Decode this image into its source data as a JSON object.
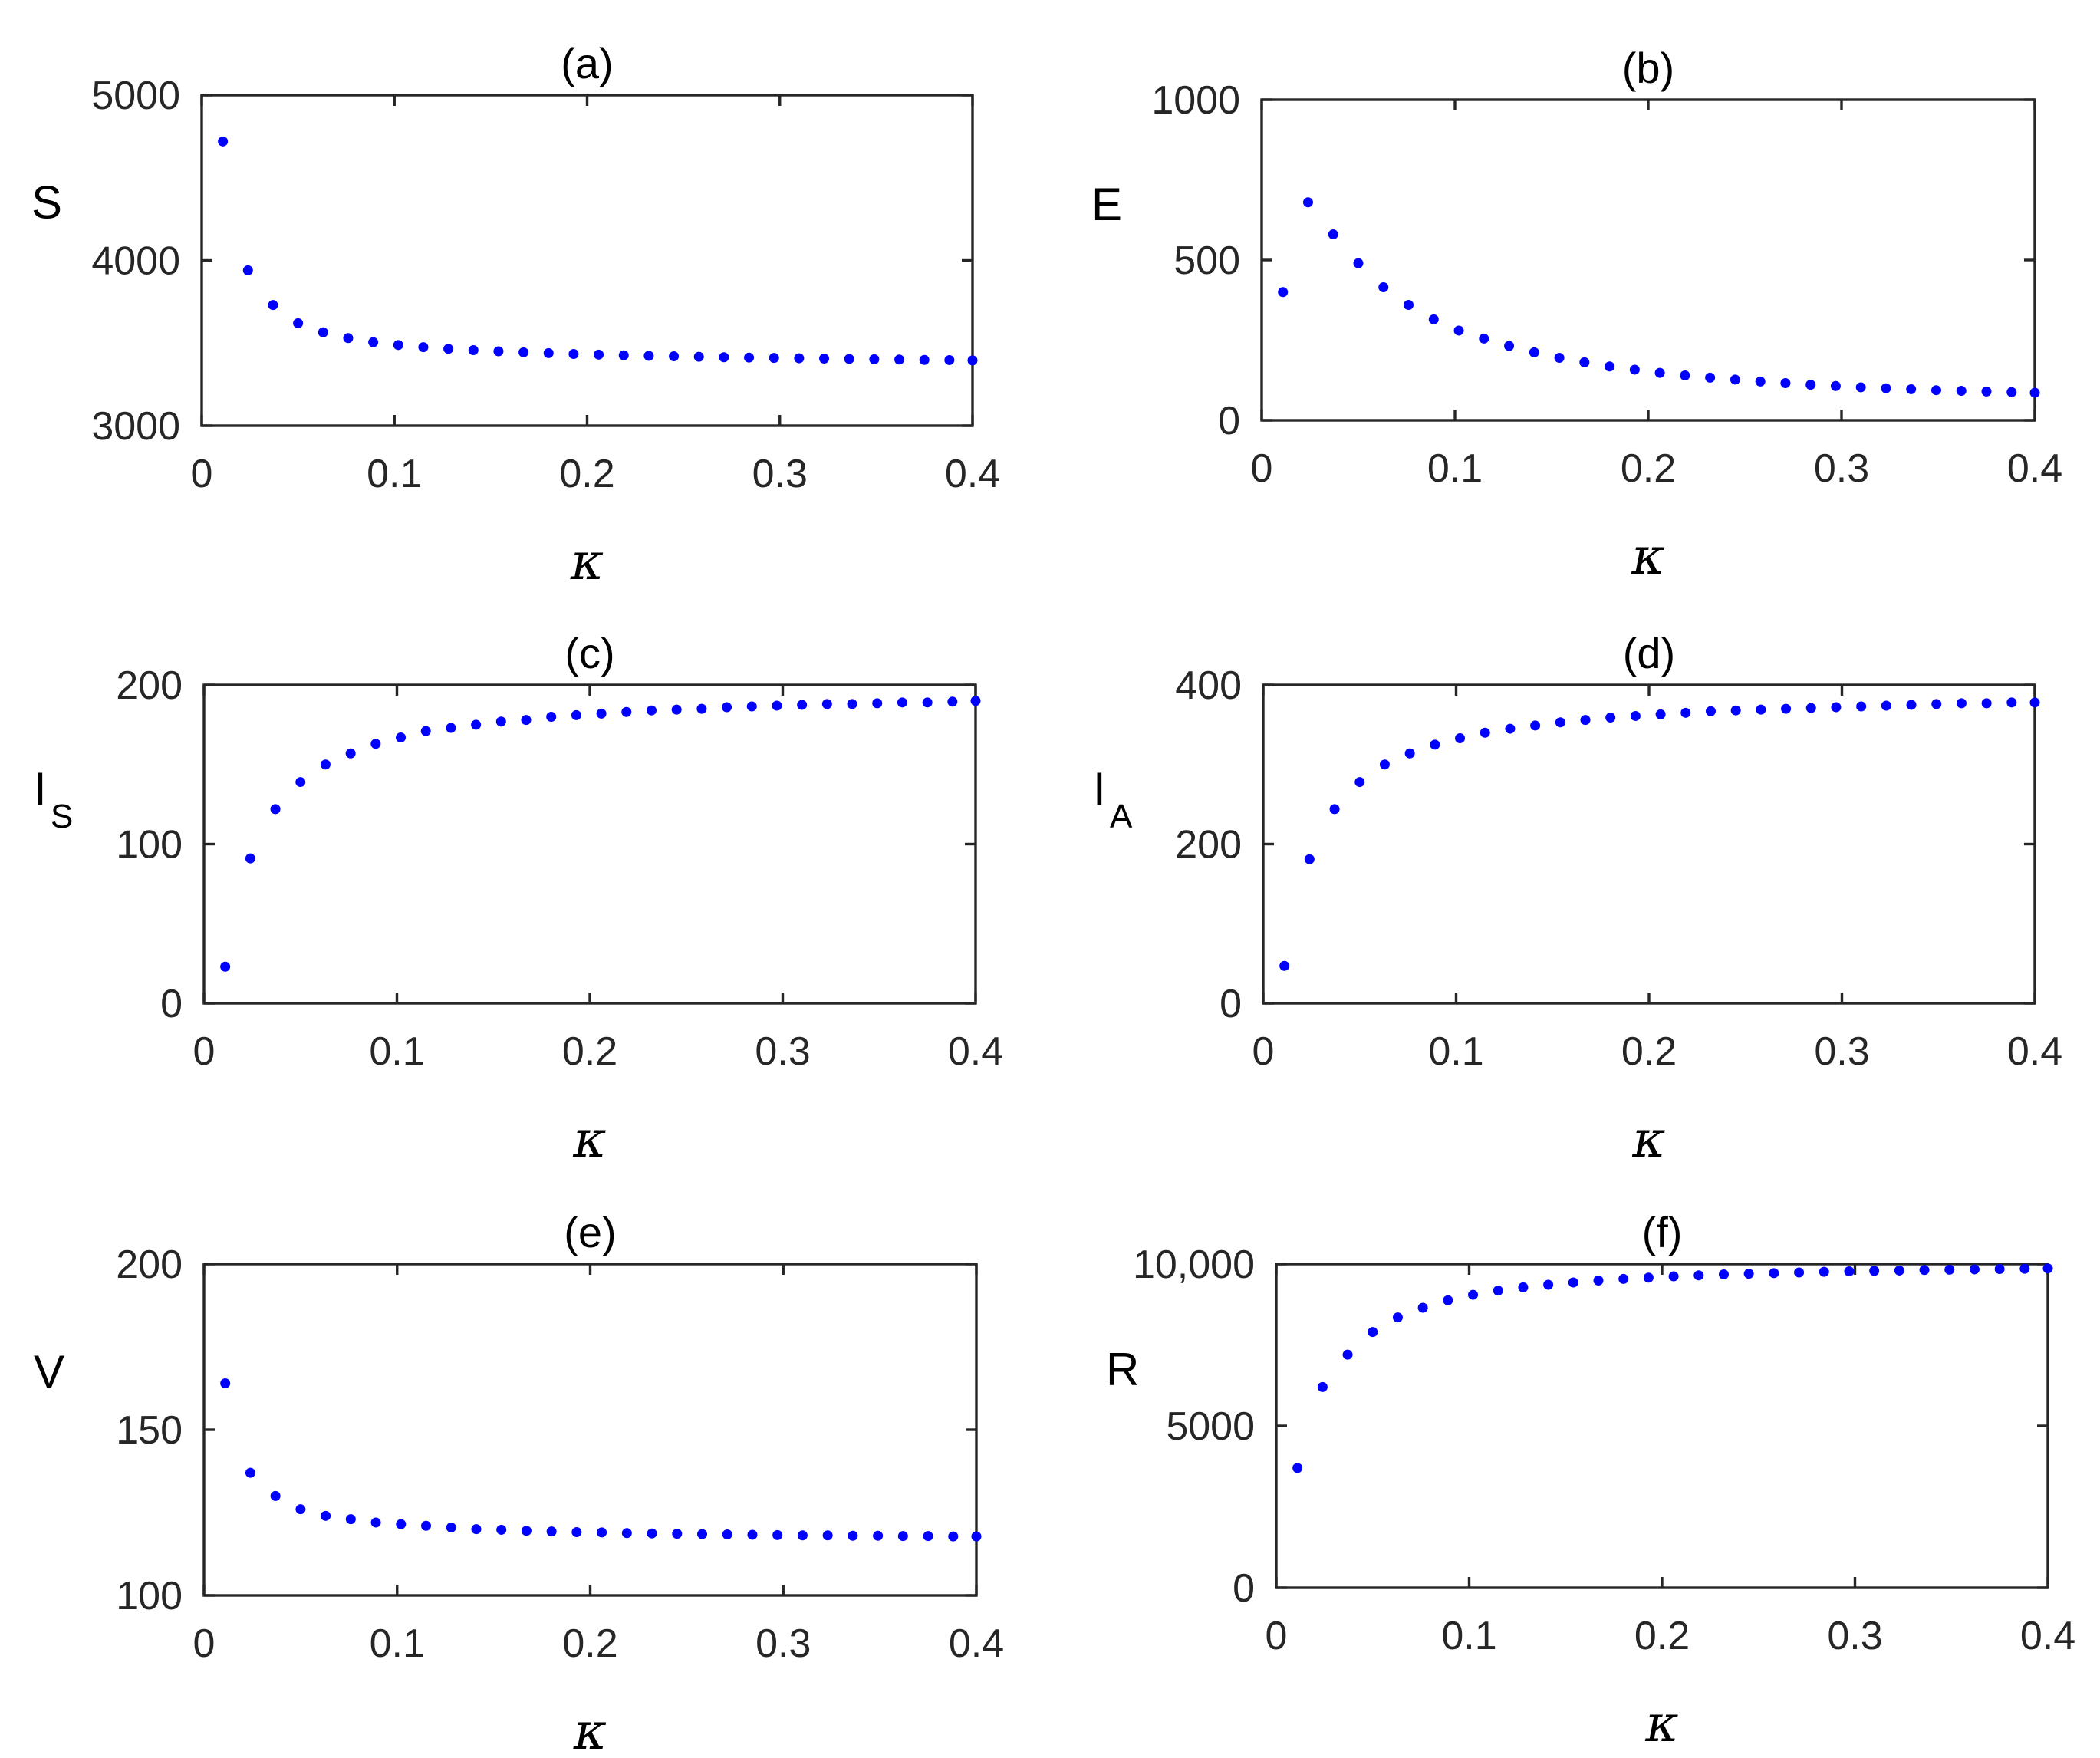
{
  "figure": {
    "point_color": "#0000ff",
    "axis_color": "#262626"
  },
  "chart_data": [
    {
      "id": "a",
      "type": "scatter",
      "title": "(a)",
      "ylabel": "S",
      "ylabel_sub": "",
      "xlabel": "κ",
      "xlim": [
        0,
        0.4
      ],
      "ylim": [
        3000,
        5000
      ],
      "xticks": [
        0,
        0.1,
        0.2,
        0.3,
        0.4
      ],
      "xtick_labels": [
        "0",
        "0.1",
        "0.2",
        "0.3",
        "0.4"
      ],
      "yticks": [
        3000,
        4000,
        5000
      ],
      "ytick_labels": [
        "3000",
        "4000",
        "5000"
      ],
      "x": [
        0.011,
        0.024,
        0.037,
        0.05,
        0.063,
        0.076,
        0.089,
        0.102,
        0.115,
        0.128,
        0.141,
        0.154,
        0.167,
        0.18,
        0.193,
        0.206,
        0.219,
        0.232,
        0.245,
        0.258,
        0.271,
        0.284,
        0.297,
        0.31,
        0.323,
        0.336,
        0.349,
        0.362,
        0.375,
        0.388,
        0.4
      ],
      "y": [
        4720,
        3940,
        3730,
        3620,
        3565,
        3530,
        3505,
        3488,
        3475,
        3465,
        3457,
        3450,
        3444,
        3439,
        3434,
        3430,
        3426,
        3423,
        3420,
        3417,
        3414,
        3412,
        3410,
        3408,
        3406,
        3404,
        3402,
        3400,
        3398,
        3397,
        3395
      ]
    },
    {
      "id": "b",
      "type": "scatter",
      "title": "(b)",
      "ylabel": "E",
      "ylabel_sub": "",
      "xlabel": "κ",
      "xlim": [
        0,
        0.4
      ],
      "ylim": [
        0,
        1000
      ],
      "xticks": [
        0,
        0.1,
        0.2,
        0.3,
        0.4
      ],
      "xtick_labels": [
        "0",
        "0.1",
        "0.2",
        "0.3",
        "0.4"
      ],
      "yticks": [
        0,
        500,
        1000
      ],
      "ytick_labels": [
        "0",
        "500",
        "1000"
      ],
      "x": [
        0.011,
        0.024,
        0.037,
        0.05,
        0.063,
        0.076,
        0.089,
        0.102,
        0.115,
        0.128,
        0.141,
        0.154,
        0.167,
        0.18,
        0.193,
        0.206,
        0.219,
        0.232,
        0.245,
        0.258,
        0.271,
        0.284,
        0.297,
        0.31,
        0.323,
        0.336,
        0.349,
        0.362,
        0.375,
        0.388,
        0.4
      ],
      "y": [
        400,
        680,
        580,
        490,
        415,
        360,
        315,
        280,
        255,
        232,
        212,
        195,
        181,
        168,
        158,
        148,
        140,
        133,
        127,
        121,
        116,
        111,
        107,
        103,
        100,
        97,
        94,
        92,
        90,
        88,
        86
      ]
    },
    {
      "id": "c",
      "type": "scatter",
      "title": "(c)",
      "ylabel": "I",
      "ylabel_sub": "S",
      "xlabel": "κ",
      "xlim": [
        0,
        0.4
      ],
      "ylim": [
        0,
        200
      ],
      "xticks": [
        0,
        0.1,
        0.2,
        0.3,
        0.4
      ],
      "xtick_labels": [
        "0",
        "0.1",
        "0.2",
        "0.3",
        "0.4"
      ],
      "yticks": [
        0,
        100,
        200
      ],
      "ytick_labels": [
        "0",
        "100",
        "200"
      ],
      "x": [
        0.011,
        0.024,
        0.037,
        0.05,
        0.063,
        0.076,
        0.089,
        0.102,
        0.115,
        0.128,
        0.141,
        0.154,
        0.167,
        0.18,
        0.193,
        0.206,
        0.219,
        0.232,
        0.245,
        0.258,
        0.271,
        0.284,
        0.297,
        0.31,
        0.323,
        0.336,
        0.349,
        0.362,
        0.375,
        0.388,
        0.4
      ],
      "y": [
        23,
        91,
        122,
        139,
        150,
        157,
        163,
        167,
        171,
        173,
        175,
        177,
        178,
        180,
        181,
        182,
        183,
        184,
        184.5,
        185,
        186,
        186.5,
        187,
        187.5,
        188,
        188,
        188.5,
        189,
        189,
        189.5,
        190
      ]
    },
    {
      "id": "d",
      "type": "scatter",
      "title": "(d)",
      "ylabel": "I",
      "ylabel_sub": "A",
      "xlabel": "κ",
      "xlim": [
        0,
        0.4
      ],
      "ylim": [
        0,
        400
      ],
      "xticks": [
        0,
        0.1,
        0.2,
        0.3,
        0.4
      ],
      "xtick_labels": [
        "0",
        "0.1",
        "0.2",
        "0.3",
        "0.4"
      ],
      "yticks": [
        0,
        200,
        400
      ],
      "ytick_labels": [
        "0",
        "200",
        "400"
      ],
      "x": [
        0.011,
        0.024,
        0.037,
        0.05,
        0.063,
        0.076,
        0.089,
        0.102,
        0.115,
        0.128,
        0.141,
        0.154,
        0.167,
        0.18,
        0.193,
        0.206,
        0.219,
        0.232,
        0.245,
        0.258,
        0.271,
        0.284,
        0.297,
        0.31,
        0.323,
        0.336,
        0.349,
        0.362,
        0.375,
        0.388,
        0.4
      ],
      "y": [
        47,
        181,
        244,
        278,
        300,
        314,
        325,
        333,
        340,
        345,
        349,
        353,
        356,
        359,
        361,
        363,
        365,
        367,
        368,
        369,
        370,
        371,
        372,
        373,
        374,
        375,
        376,
        377,
        377,
        378,
        378
      ]
    },
    {
      "id": "e",
      "type": "scatter",
      "title": "(e)",
      "ylabel": "V",
      "ylabel_sub": "",
      "xlabel": "κ",
      "xlim": [
        0,
        0.4
      ],
      "ylim": [
        100,
        200
      ],
      "xticks": [
        0,
        0.1,
        0.2,
        0.3,
        0.4
      ],
      "xtick_labels": [
        "0",
        "0.1",
        "0.2",
        "0.3",
        "0.4"
      ],
      "yticks": [
        100,
        150,
        200
      ],
      "ytick_labels": [
        "100",
        "150",
        "200"
      ],
      "x": [
        0.011,
        0.024,
        0.037,
        0.05,
        0.063,
        0.076,
        0.089,
        0.102,
        0.115,
        0.128,
        0.141,
        0.154,
        0.167,
        0.18,
        0.193,
        0.206,
        0.219,
        0.232,
        0.245,
        0.258,
        0.271,
        0.284,
        0.297,
        0.31,
        0.323,
        0.336,
        0.349,
        0.362,
        0.375,
        0.388,
        0.4
      ],
      "y": [
        164,
        137,
        130,
        126,
        124,
        123,
        122,
        121.5,
        121,
        120.5,
        120,
        119.8,
        119.5,
        119.3,
        119.1,
        119,
        118.8,
        118.7,
        118.6,
        118.5,
        118.4,
        118.3,
        118.2,
        118.1,
        118.1,
        118,
        118,
        117.9,
        117.9,
        117.8,
        117.8
      ]
    },
    {
      "id": "f",
      "type": "scatter",
      "title": "(f)",
      "ylabel": "R",
      "ylabel_sub": "",
      "xlabel": "κ",
      "xlim": [
        0,
        0.4
      ],
      "ylim": [
        0,
        10000
      ],
      "xticks": [
        0,
        0.1,
        0.2,
        0.3,
        0.4
      ],
      "xtick_labels": [
        "0",
        "0.1",
        "0.2",
        "0.3",
        "0.4"
      ],
      "yticks": [
        0,
        5000,
        10000
      ],
      "ytick_labels": [
        "0",
        "5000",
        "10,000"
      ],
      "x": [
        0.011,
        0.024,
        0.037,
        0.05,
        0.063,
        0.076,
        0.089,
        0.102,
        0.115,
        0.128,
        0.141,
        0.154,
        0.167,
        0.18,
        0.193,
        0.206,
        0.219,
        0.232,
        0.245,
        0.258,
        0.271,
        0.284,
        0.297,
        0.31,
        0.323,
        0.336,
        0.349,
        0.362,
        0.375,
        0.388,
        0.4
      ],
      "y": [
        3700,
        6200,
        7200,
        7900,
        8350,
        8650,
        8880,
        9050,
        9180,
        9280,
        9360,
        9430,
        9490,
        9540,
        9580,
        9620,
        9650,
        9680,
        9700,
        9720,
        9740,
        9760,
        9775,
        9790,
        9800,
        9815,
        9825,
        9835,
        9845,
        9855,
        9865
      ]
    }
  ]
}
